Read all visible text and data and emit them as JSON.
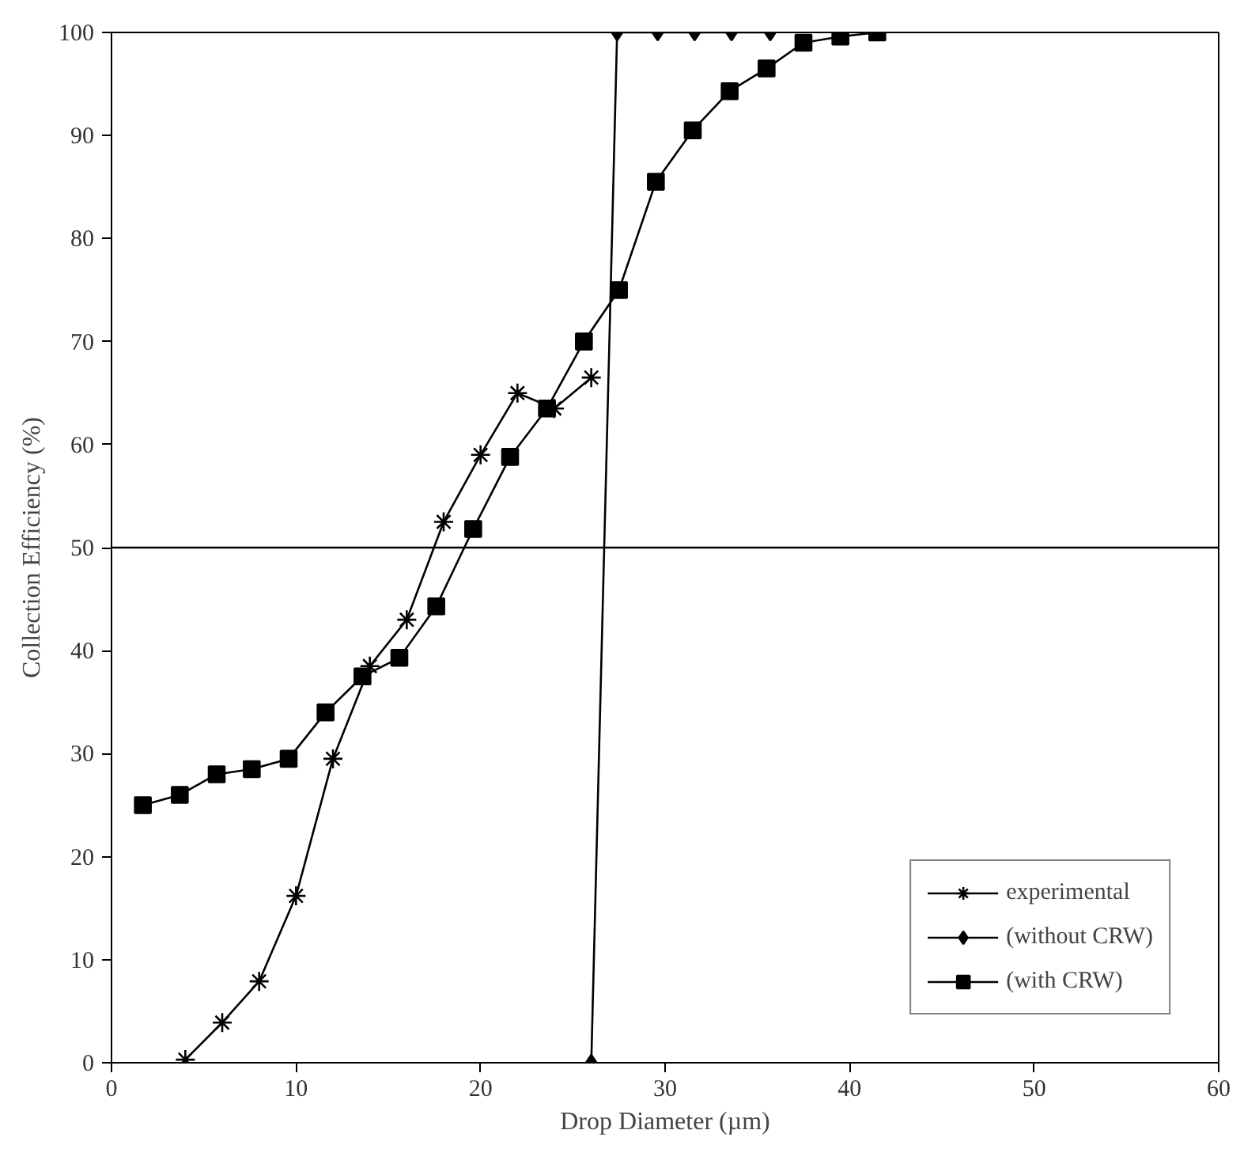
{
  "chart_data": {
    "type": "line",
    "xlabel": "Drop Diameter (µm)",
    "ylabel": "Collection Efficiency (%)",
    "xlim": [
      0,
      60
    ],
    "ylim": [
      0,
      100
    ],
    "xticks": [
      0,
      10,
      20,
      30,
      40,
      50,
      60
    ],
    "yticks": [
      0,
      10,
      20,
      30,
      40,
      50,
      60,
      70,
      80,
      90,
      100
    ],
    "grid": false,
    "legend": "bottom right",
    "line_style": "solid",
    "ref_lines": [
      {
        "axis": "y",
        "value": 50,
        "color": "#000000"
      }
    ],
    "series": [
      {
        "name": "experimental",
        "color": "#000000",
        "marker": "cross",
        "x": [
          4,
          6,
          8,
          10,
          12,
          14,
          16,
          18,
          20,
          22,
          24,
          26
        ],
        "values": [
          0.3,
          3.9,
          7.9,
          16.2,
          29.5,
          38.5,
          43,
          52.5,
          59,
          65,
          63.5,
          66.5
        ]
      },
      {
        "name": "(without CRW)",
        "color": "#000000",
        "marker": "diamond",
        "x": [
          26,
          27.4,
          29.6,
          31.6,
          33.6,
          35.7
        ],
        "values": [
          0,
          100,
          100,
          100,
          100,
          100
        ]
      },
      {
        "name": "(with CRW)",
        "color": "#000000",
        "marker": "square",
        "x": [
          1.7,
          3.7,
          5.7,
          7.6,
          9.6,
          11.6,
          13.6,
          15.6,
          17.6,
          19.6,
          21.6,
          23.6,
          25.6,
          27.5,
          29.5,
          31.5,
          33.5,
          35.5,
          37.5,
          39.5,
          41.5
        ],
        "values": [
          25,
          26,
          28,
          28.5,
          29.5,
          34,
          37.5,
          39.3,
          44.3,
          51.8,
          58.8,
          63.5,
          70,
          75,
          85.5,
          90.5,
          94.3,
          96.5,
          99,
          99.6,
          100
        ]
      }
    ]
  }
}
